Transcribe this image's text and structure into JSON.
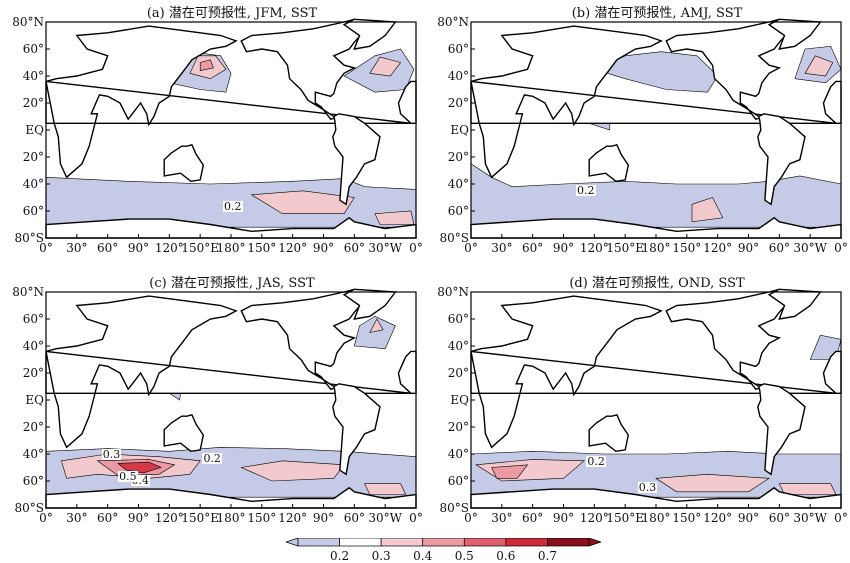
{
  "panels": [
    {
      "title": "(a) 潜在可预报性, JFM, SST",
      "contour_labels": [
        "0.2"
      ]
    },
    {
      "title": "(b) 潜在可预报性, AMJ, SST",
      "contour_labels": [
        "0.2"
      ]
    },
    {
      "title": "(c) 潜在可预报性, JAS, SST",
      "contour_labels": [
        "0.3",
        "0.4",
        "0.5",
        "0.2"
      ]
    },
    {
      "title": "(d) 潜在可预报性, OND, SST",
      "contour_labels": [
        "0.2",
        "0.3"
      ]
    }
  ],
  "lat_ticks": [
    "80°N",
    "60°",
    "40°",
    "20°",
    "EQ",
    "20°",
    "40°",
    "60°",
    "80°S"
  ],
  "lon_ticks": [
    "0°",
    "30°",
    "60°",
    "90°",
    "120°",
    "150°E",
    "180°",
    "150°",
    "120°",
    "90°",
    "60°",
    "30°W",
    "0°"
  ],
  "colorbar": {
    "ticks": [
      "0.2",
      "0.3",
      "0.4",
      "0.5",
      "0.6",
      "0.7"
    ],
    "colors": [
      "#c5cbe6",
      "#ffffff",
      "#f2c9cd",
      "#e99aa2",
      "#e0606f",
      "#cf2a38",
      "#8a0f1c"
    ]
  },
  "map_colors": {
    "low": "#c5cbe6",
    "mid": "#f2c9cd",
    "high": "#e99aa2",
    "top": "#d43a48",
    "coast": "#000000"
  }
}
